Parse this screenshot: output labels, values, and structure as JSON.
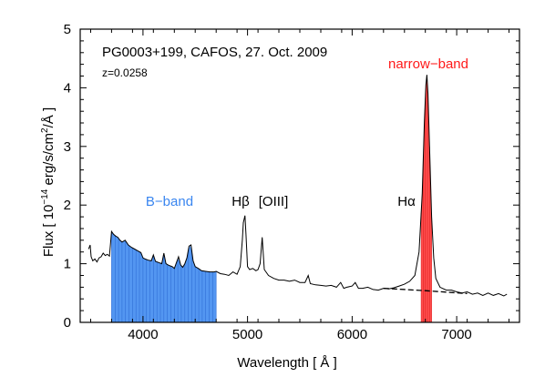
{
  "chart_data": {
    "type": "line",
    "title": "PG0003+199, CAFOS, 27. Oct. 2009",
    "subtitle": "z=0.0258",
    "xlabel": "Wavelength [ Å ]",
    "ylabel": {
      "prefix": "Flux  [ 10",
      "exp1": "−14",
      "middle": " erg/s/cm",
      "exp2": "2",
      "suffix": "/Å ]"
    },
    "xlim": [
      3400,
      7600
    ],
    "ylim": [
      0,
      5
    ],
    "xticks": [
      4000,
      5000,
      6000,
      7000
    ],
    "yticks": [
      0,
      1,
      2,
      3,
      4,
      5
    ],
    "grid": false,
    "bands": [
      {
        "label": "B−band",
        "x_start": 3700,
        "x_end": 4700,
        "color": "#4a90f0"
      },
      {
        "label": "narrow−band",
        "x_start": 6660,
        "x_end": 6760,
        "color": "#ff4444"
      }
    ],
    "line_labels": [
      {
        "label": "Hβ",
        "x": 4950,
        "y": 2.0
      },
      {
        "label": "[OIII]",
        "x": 5130,
        "y": 2.0
      },
      {
        "label": "Hα",
        "x": 6520,
        "y": 2.0
      }
    ],
    "continuum_fit": {
      "style": "dashed",
      "points": [
        [
          6300,
          0.58
        ],
        [
          6700,
          0.54
        ],
        [
          7100,
          0.49
        ]
      ]
    },
    "series": [
      {
        "points": [
          [
            3480,
            1.25
          ],
          [
            3495,
            1.32
          ],
          [
            3505,
            1.12
          ],
          [
            3520,
            1.05
          ],
          [
            3540,
            1.08
          ],
          [
            3560,
            1.03
          ],
          [
            3580,
            1.1
          ],
          [
            3600,
            1.12
          ],
          [
            3620,
            1.18
          ],
          [
            3640,
            1.14
          ],
          [
            3660,
            1.16
          ],
          [
            3680,
            1.13
          ],
          [
            3700,
            1.55
          ],
          [
            3720,
            1.5
          ],
          [
            3740,
            1.47
          ],
          [
            3760,
            1.45
          ],
          [
            3780,
            1.4
          ],
          [
            3800,
            1.37
          ],
          [
            3830,
            1.4
          ],
          [
            3860,
            1.32
          ],
          [
            3890,
            1.28
          ],
          [
            3920,
            1.25
          ],
          [
            3950,
            1.22
          ],
          [
            3980,
            1.19
          ],
          [
            4000,
            1.1
          ],
          [
            4020,
            1.08
          ],
          [
            4050,
            1.06
          ],
          [
            4080,
            1.05
          ],
          [
            4100,
            1.15
          ],
          [
            4120,
            1.04
          ],
          [
            4150,
            1.02
          ],
          [
            4180,
            1.0
          ],
          [
            4200,
            1.18
          ],
          [
            4220,
            1.0
          ],
          [
            4250,
            0.97
          ],
          [
            4280,
            0.95
          ],
          [
            4300,
            0.92
          ],
          [
            4340,
            1.12
          ],
          [
            4360,
            0.98
          ],
          [
            4380,
            0.94
          ],
          [
            4400,
            1.0
          ],
          [
            4420,
            1.1
          ],
          [
            4440,
            1.3
          ],
          [
            4460,
            1.32
          ],
          [
            4480,
            1.05
          ],
          [
            4500,
            0.95
          ],
          [
            4530,
            0.92
          ],
          [
            4560,
            0.88
          ],
          [
            4600,
            0.87
          ],
          [
            4640,
            0.86
          ],
          [
            4680,
            0.86
          ],
          [
            4700,
            0.87
          ],
          [
            4740,
            0.83
          ],
          [
            4780,
            0.82
          ],
          [
            4820,
            0.8
          ],
          [
            4860,
            0.86
          ],
          [
            4900,
            0.82
          ],
          [
            4930,
            0.95
          ],
          [
            4950,
            1.4
          ],
          [
            4960,
            1.7
          ],
          [
            4975,
            1.82
          ],
          [
            4985,
            1.5
          ],
          [
            5000,
            0.95
          ],
          [
            5020,
            0.9
          ],
          [
            5050,
            0.92
          ],
          [
            5080,
            0.88
          ],
          [
            5100,
            0.9
          ],
          [
            5120,
            1.0
          ],
          [
            5140,
            1.45
          ],
          [
            5160,
            0.9
          ],
          [
            5200,
            0.8
          ],
          [
            5250,
            0.75
          ],
          [
            5300,
            0.72
          ],
          [
            5350,
            0.72
          ],
          [
            5400,
            0.7
          ],
          [
            5450,
            0.72
          ],
          [
            5500,
            0.68
          ],
          [
            5550,
            0.68
          ],
          [
            5580,
            0.8
          ],
          [
            5600,
            0.66
          ],
          [
            5650,
            0.64
          ],
          [
            5700,
            0.63
          ],
          [
            5750,
            0.62
          ],
          [
            5800,
            0.63
          ],
          [
            5850,
            0.6
          ],
          [
            5890,
            0.68
          ],
          [
            5920,
            0.58
          ],
          [
            5950,
            0.6
          ],
          [
            6000,
            0.62
          ],
          [
            6030,
            0.68
          ],
          [
            6060,
            0.58
          ],
          [
            6100,
            0.58
          ],
          [
            6150,
            0.6
          ],
          [
            6200,
            0.56
          ],
          [
            6250,
            0.55
          ],
          [
            6300,
            0.58
          ],
          [
            6350,
            0.57
          ],
          [
            6400,
            0.59
          ],
          [
            6450,
            0.62
          ],
          [
            6500,
            0.65
          ],
          [
            6550,
            0.7
          ],
          [
            6600,
            0.8
          ],
          [
            6640,
            1.2
          ],
          [
            6670,
            2.2
          ],
          [
            6690,
            3.4
          ],
          [
            6705,
            4.05
          ],
          [
            6715,
            4.22
          ],
          [
            6725,
            3.9
          ],
          [
            6740,
            3.0
          ],
          [
            6760,
            1.8
          ],
          [
            6780,
            1.1
          ],
          [
            6800,
            0.75
          ],
          [
            6840,
            0.6
          ],
          [
            6900,
            0.55
          ],
          [
            6950,
            0.55
          ],
          [
            7000,
            0.52
          ],
          [
            7050,
            0.5
          ],
          [
            7100,
            0.52
          ],
          [
            7150,
            0.48
          ],
          [
            7200,
            0.5
          ],
          [
            7250,
            0.46
          ],
          [
            7300,
            0.5
          ],
          [
            7350,
            0.46
          ],
          [
            7400,
            0.49
          ],
          [
            7450,
            0.45
          ],
          [
            7480,
            0.48
          ]
        ]
      }
    ]
  }
}
